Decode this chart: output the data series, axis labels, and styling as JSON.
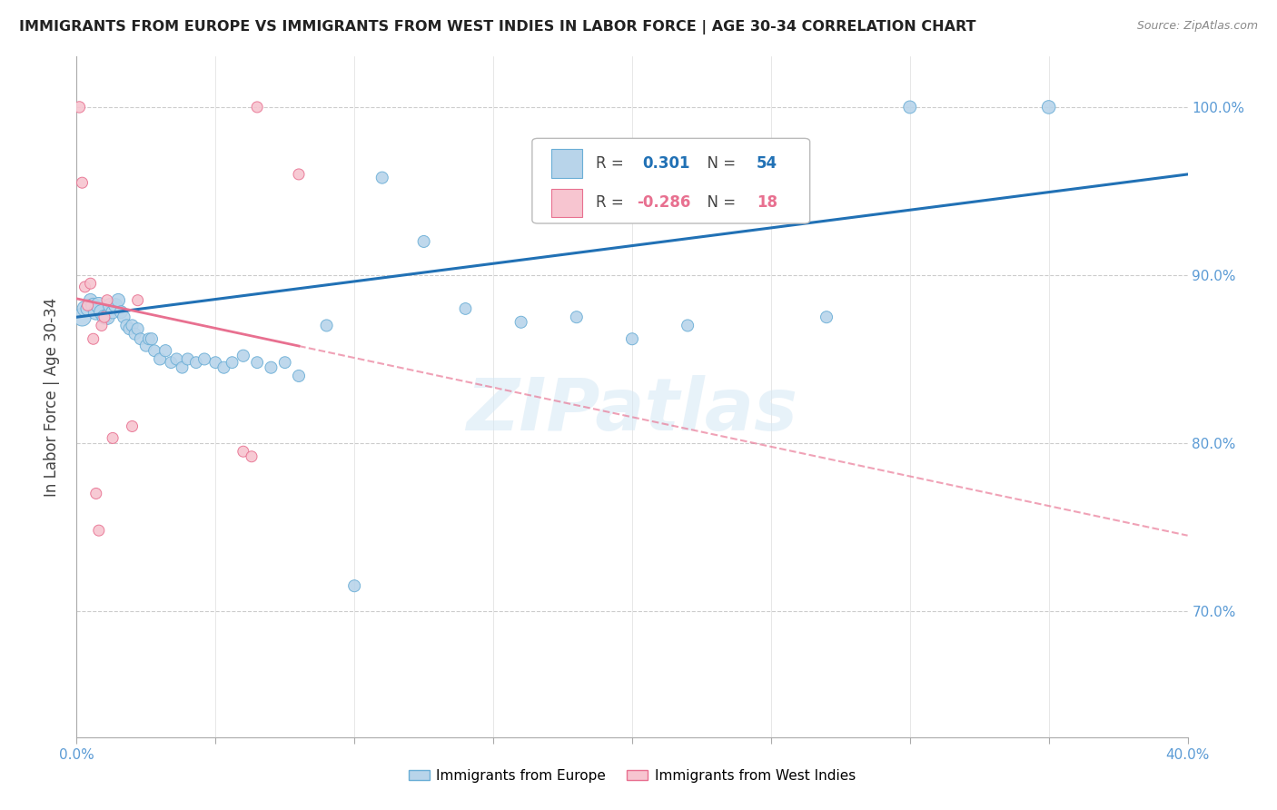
{
  "title": "IMMIGRANTS FROM EUROPE VS IMMIGRANTS FROM WEST INDIES IN LABOR FORCE | AGE 30-34 CORRELATION CHART",
  "source": "Source: ZipAtlas.com",
  "ylabel": "In Labor Force | Age 30-34",
  "xlim": [
    0.0,
    0.4
  ],
  "ylim": [
    0.625,
    1.03
  ],
  "europe_color": "#b8d4ea",
  "europe_edge": "#6aaed6",
  "westindies_color": "#f7c5d0",
  "westindies_edge": "#e87090",
  "trend_europe_color": "#2171b5",
  "trend_westindies_color": "#e87090",
  "R_europe": 0.301,
  "N_europe": 54,
  "R_westindies": -0.286,
  "N_westindies": 18,
  "watermark": "ZIPatlas",
  "europe_x": [
    0.002,
    0.003,
    0.004,
    0.005,
    0.006,
    0.007,
    0.008,
    0.009,
    0.01,
    0.011,
    0.012,
    0.013,
    0.014,
    0.015,
    0.016,
    0.017,
    0.018,
    0.019,
    0.02,
    0.021,
    0.022,
    0.023,
    0.025,
    0.026,
    0.027,
    0.028,
    0.03,
    0.032,
    0.034,
    0.036,
    0.038,
    0.04,
    0.043,
    0.046,
    0.05,
    0.053,
    0.056,
    0.06,
    0.065,
    0.07,
    0.075,
    0.08,
    0.09,
    0.1,
    0.11,
    0.125,
    0.14,
    0.16,
    0.18,
    0.2,
    0.22,
    0.27,
    0.3,
    0.35
  ],
  "europe_y": [
    0.875,
    0.88,
    0.88,
    0.885,
    0.882,
    0.878,
    0.882,
    0.878,
    0.875,
    0.875,
    0.882,
    0.878,
    0.882,
    0.885,
    0.878,
    0.875,
    0.87,
    0.868,
    0.87,
    0.865,
    0.868,
    0.862,
    0.858,
    0.862,
    0.862,
    0.855,
    0.85,
    0.855,
    0.848,
    0.85,
    0.845,
    0.85,
    0.848,
    0.85,
    0.848,
    0.845,
    0.848,
    0.852,
    0.848,
    0.845,
    0.848,
    0.84,
    0.87,
    0.715,
    0.958,
    0.92,
    0.88,
    0.872,
    0.875,
    0.862,
    0.87,
    0.875,
    1.0,
    1.0
  ],
  "europe_size": [
    200,
    150,
    120,
    110,
    130,
    150,
    160,
    140,
    130,
    140,
    120,
    110,
    120,
    110,
    100,
    95,
    90,
    88,
    90,
    88,
    88,
    85,
    88,
    85,
    90,
    85,
    88,
    90,
    85,
    88,
    85,
    88,
    85,
    88,
    85,
    88,
    85,
    90,
    85,
    88,
    85,
    88,
    88,
    88,
    88,
    88,
    85,
    88,
    88,
    88,
    88,
    88,
    100,
    110
  ],
  "westindies_x": [
    0.001,
    0.002,
    0.003,
    0.004,
    0.005,
    0.006,
    0.007,
    0.008,
    0.009,
    0.01,
    0.011,
    0.013,
    0.02,
    0.022,
    0.06,
    0.063,
    0.065,
    0.08
  ],
  "westindies_y": [
    1.0,
    0.955,
    0.893,
    0.882,
    0.895,
    0.862,
    0.77,
    0.748,
    0.87,
    0.875,
    0.885,
    0.803,
    0.81,
    0.885,
    0.795,
    0.792,
    1.0,
    0.96
  ],
  "westindies_size": [
    80,
    75,
    75,
    75,
    75,
    75,
    75,
    75,
    75,
    75,
    75,
    75,
    75,
    75,
    75,
    75,
    75,
    75
  ]
}
